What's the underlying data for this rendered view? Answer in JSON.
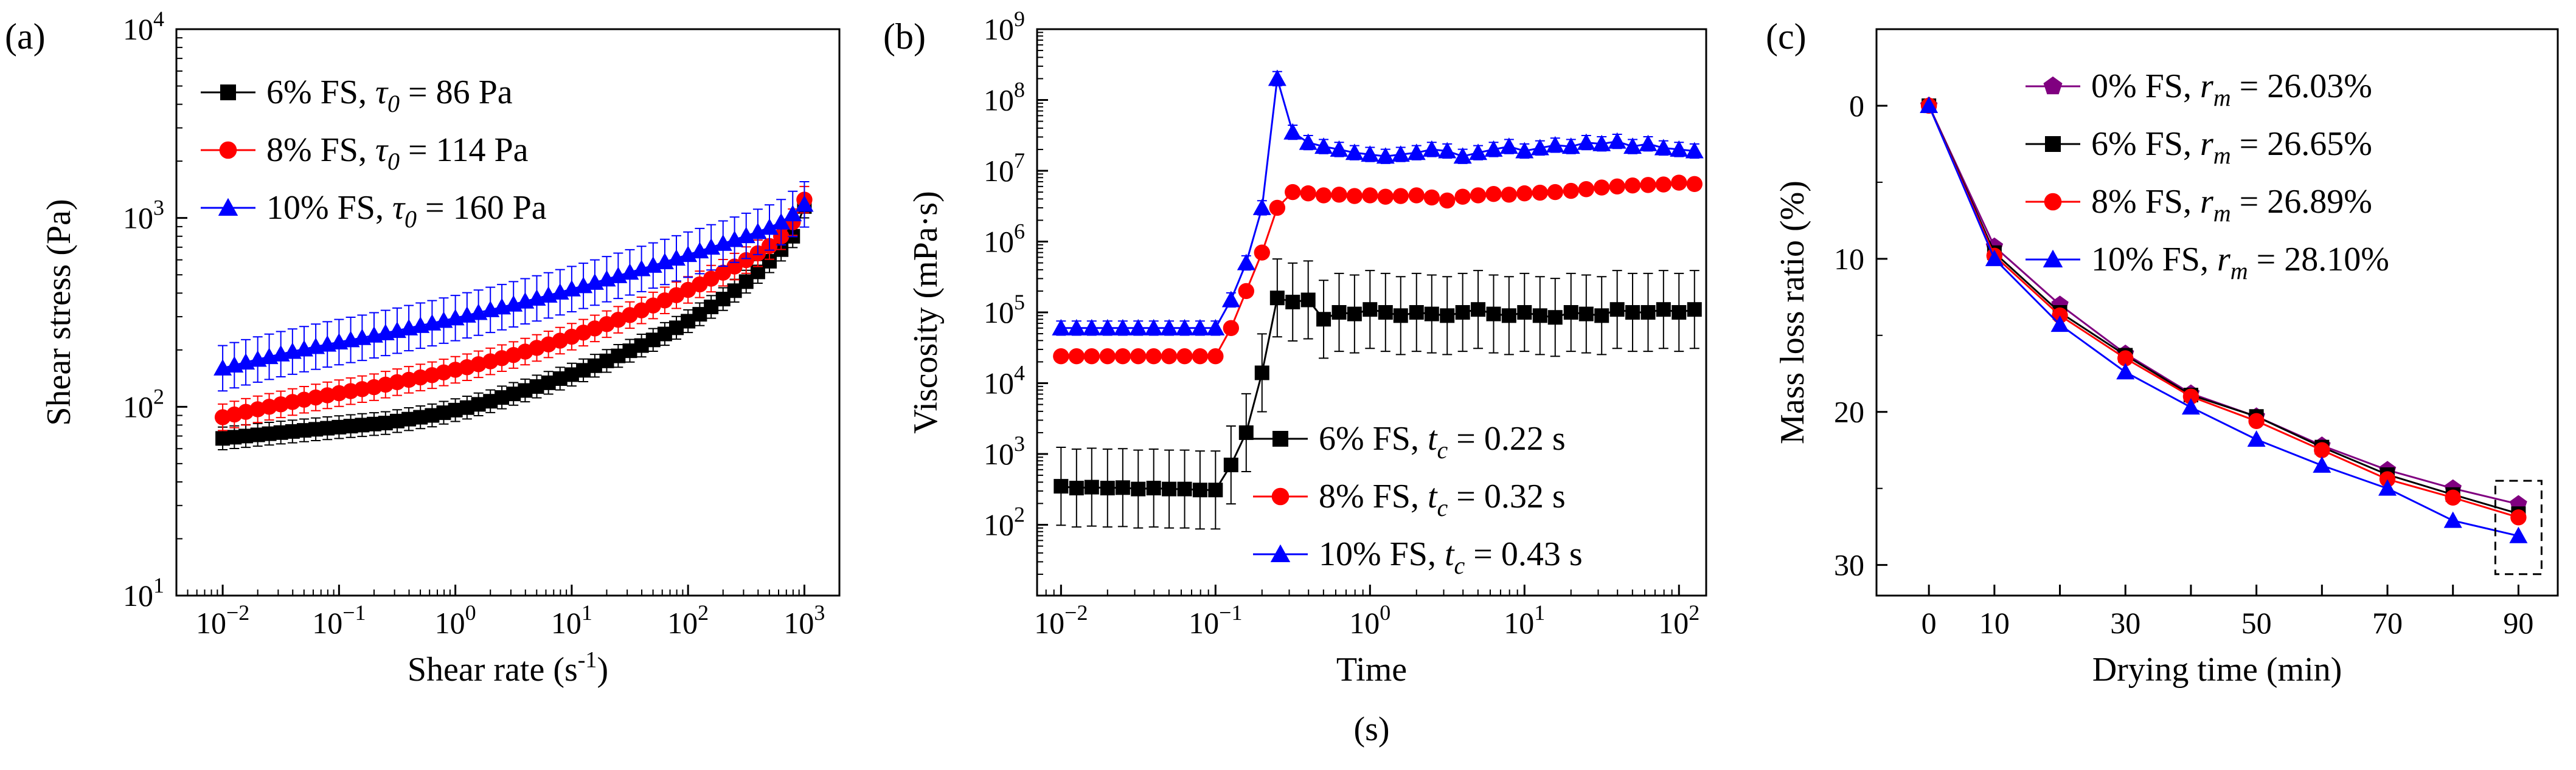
{
  "chart_data": [
    {
      "type": "scatter",
      "panel_label": "(a)",
      "xlabel": "Shear rate (s",
      "xlabel_sup": "-1",
      "xlabel_end": ")",
      "ylabel": "Shear stress (Pa)",
      "xscale": "log",
      "yscale": "log",
      "xlim": [
        0.004,
        2000
      ],
      "ylim": [
        10,
        10000
      ],
      "xticks": [
        {
          "v": 0.01,
          "base": "10",
          "exp": "−2"
        },
        {
          "v": 0.1,
          "base": "10",
          "exp": "−1"
        },
        {
          "v": 1,
          "base": "10",
          "exp": "0"
        },
        {
          "v": 10,
          "base": "10",
          "exp": "1"
        },
        {
          "v": 100,
          "base": "10",
          "exp": "2"
        },
        {
          "v": 1000,
          "base": "10",
          "exp": "3"
        }
      ],
      "yticks": [
        {
          "v": 10,
          "base": "10",
          "exp": "1"
        },
        {
          "v": 100,
          "base": "10",
          "exp": "2"
        },
        {
          "v": 1000,
          "base": "10",
          "exp": "3"
        },
        {
          "v": 10000,
          "base": "10",
          "exp": "4"
        }
      ],
      "legend_position": "top-left",
      "series": [
        {
          "legend": {
            "pre": "6% FS, ",
            "sym": "τ",
            "sub": "0",
            "post": " = 86 Pa"
          },
          "color": "#000000",
          "marker": "square",
          "x": [
            0.01,
            0.0126,
            0.0158,
            0.02,
            0.0251,
            0.0316,
            0.0398,
            0.0501,
            0.0631,
            0.0794,
            0.1,
            0.126,
            0.158,
            0.2,
            0.251,
            0.316,
            0.398,
            0.501,
            0.631,
            0.794,
            1,
            1.26,
            1.58,
            2,
            2.51,
            3.16,
            3.98,
            5.01,
            6.31,
            7.94,
            10,
            12.6,
            15.8,
            20,
            25.1,
            31.6,
            39.8,
            50.1,
            63.1,
            79.4,
            100,
            126,
            158,
            200,
            251,
            316,
            398,
            501,
            631,
            794,
            1000
          ],
          "y": [
            68,
            69,
            70,
            71,
            72,
            73,
            74,
            75,
            76,
            77,
            78,
            79,
            80,
            81,
            82,
            84,
            86,
            88,
            90,
            93,
            96,
            99,
            103,
            107,
            112,
            117,
            122,
            128,
            134,
            141,
            148,
            156,
            165,
            175,
            186,
            198,
            211,
            226,
            243,
            262,
            284,
            309,
            338,
            372,
            412,
            460,
            518,
            590,
            680,
            800,
            1150
          ],
          "err": 0.06
        },
        {
          "legend": {
            "pre": "8% FS, ",
            "sym": "τ",
            "sub": "0",
            "post": " = 114 Pa"
          },
          "color": "#ff0000",
          "marker": "circle",
          "x": [
            0.01,
            0.0126,
            0.0158,
            0.02,
            0.0251,
            0.0316,
            0.0398,
            0.0501,
            0.0631,
            0.0794,
            0.1,
            0.126,
            0.158,
            0.2,
            0.251,
            0.316,
            0.398,
            0.501,
            0.631,
            0.794,
            1,
            1.26,
            1.58,
            2,
            2.51,
            3.16,
            3.98,
            5.01,
            6.31,
            7.94,
            10,
            12.6,
            15.8,
            20,
            25.1,
            31.6,
            39.8,
            50.1,
            63.1,
            79.4,
            100,
            126,
            158,
            200,
            251,
            316,
            398,
            501,
            631,
            794,
            1000
          ],
          "y": [
            88,
            91,
            94,
            97,
            100,
            103,
            106,
            109,
            112,
            115,
            118,
            121,
            124,
            127,
            131,
            135,
            139,
            143,
            147,
            152,
            157,
            162,
            168,
            174,
            181,
            188,
            196,
            205,
            214,
            224,
            235,
            247,
            260,
            274,
            289,
            306,
            324,
            344,
            366,
            390,
            416,
            445,
            477,
            513,
            553,
            598,
            650,
            710,
            800,
            950,
            1250
          ],
          "err": 0.07
        },
        {
          "legend": {
            "pre": "10% FS, ",
            "sym": "τ",
            "sub": "0",
            "post": " = 160 Pa"
          },
          "color": "#0000ff",
          "marker": "triangle",
          "x": [
            0.01,
            0.0126,
            0.0158,
            0.02,
            0.0251,
            0.0316,
            0.0398,
            0.0501,
            0.0631,
            0.0794,
            0.1,
            0.126,
            0.158,
            0.2,
            0.251,
            0.316,
            0.398,
            0.501,
            0.631,
            0.794,
            1,
            1.26,
            1.58,
            2,
            2.51,
            3.16,
            3.98,
            5.01,
            6.31,
            7.94,
            10,
            12.6,
            15.8,
            20,
            25.1,
            31.6,
            39.8,
            50.1,
            63.1,
            79.4,
            100,
            126,
            158,
            200,
            251,
            316,
            398,
            501,
            631,
            794,
            1000
          ],
          "y": [
            160,
            166,
            172,
            178,
            184,
            190,
            196,
            202,
            208,
            214,
            220,
            226,
            232,
            239,
            246,
            253,
            261,
            269,
            277,
            286,
            295,
            305,
            315,
            326,
            337,
            349,
            362,
            375,
            389,
            404,
            420,
            437,
            455,
            474,
            494,
            515,
            537,
            560,
            585,
            611,
            639,
            668,
            699,
            732,
            767,
            804,
            844,
            890,
            950,
            1050,
            1180
          ],
          "err": 0.12
        }
      ]
    },
    {
      "type": "line",
      "panel_label": "(b)",
      "xlabel": "Time",
      "xlabel_unit": "(s)",
      "ylabel": "Viscosity (mPa·s)",
      "xscale": "log",
      "yscale": "log",
      "xlim": [
        0.007,
        150
      ],
      "ylim": [
        10,
        1000000000
      ],
      "xticks": [
        {
          "v": 0.01,
          "base": "10",
          "exp": "−2"
        },
        {
          "v": 0.1,
          "base": "10",
          "exp": "−1"
        },
        {
          "v": 1,
          "base": "10",
          "exp": "0"
        },
        {
          "v": 10,
          "base": "10",
          "exp": "1"
        },
        {
          "v": 100,
          "base": "10",
          "exp": "2"
        }
      ],
      "yticks": [
        {
          "v": 100,
          "base": "10",
          "exp": "2"
        },
        {
          "v": 1000,
          "base": "10",
          "exp": "3"
        },
        {
          "v": 10000,
          "base": "10",
          "exp": "4"
        },
        {
          "v": 100000,
          "base": "10",
          "exp": "5"
        },
        {
          "v": 1000000,
          "base": "10",
          "exp": "6"
        },
        {
          "v": 10000000,
          "base": "10",
          "exp": "7"
        },
        {
          "v": 100000000,
          "base": "10",
          "exp": "8"
        },
        {
          "v": 1000000000,
          "base": "10",
          "exp": "9"
        }
      ],
      "legend_position": "bottom-right",
      "series": [
        {
          "legend": {
            "pre": "6% FS, ",
            "sym": "t",
            "sub": "c",
            "post": " = 0.22 s"
          },
          "color": "#000000",
          "marker": "square",
          "x": [
            0.01,
            0.0126,
            0.0158,
            0.02,
            0.0251,
            0.0316,
            0.0398,
            0.0501,
            0.0631,
            0.0794,
            0.1,
            0.126,
            0.158,
            0.2,
            0.251,
            0.316,
            0.398,
            0.501,
            0.631,
            0.794,
            1,
            1.26,
            1.58,
            2,
            2.51,
            3.16,
            3.98,
            5.01,
            6.31,
            7.94,
            10,
            12.6,
            15.8,
            20,
            25.1,
            31.6,
            39.8,
            50.1,
            63.1,
            79.4,
            100,
            126
          ],
          "y": [
            350,
            330,
            340,
            330,
            335,
            320,
            330,
            320,
            320,
            310,
            310,
            700,
            2000,
            14000,
            160000,
            140000,
            150000,
            80000,
            100000,
            95000,
            110000,
            100000,
            90000,
            100000,
            95000,
            90000,
            100000,
            110000,
            95000,
            90000,
            100000,
            90000,
            85000,
            100000,
            95000,
            90000,
            110000,
            100000,
            100000,
            110000,
            100000,
            110000
          ],
          "err": 0.55
        },
        {
          "legend": {
            "pre": "8% FS, ",
            "sym": "t",
            "sub": "c",
            "post": " = 0.32 s"
          },
          "color": "#ff0000",
          "marker": "circle",
          "x": [
            0.01,
            0.0126,
            0.0158,
            0.02,
            0.0251,
            0.0316,
            0.0398,
            0.0501,
            0.0631,
            0.0794,
            0.1,
            0.126,
            0.158,
            0.2,
            0.251,
            0.316,
            0.398,
            0.501,
            0.631,
            0.794,
            1,
            1.26,
            1.58,
            2,
            2.51,
            3.16,
            3.98,
            5.01,
            6.31,
            7.94,
            10,
            12.6,
            15.8,
            20,
            25.1,
            31.6,
            39.8,
            50.1,
            63.1,
            79.4,
            100,
            126
          ],
          "y": [
            24000,
            24000,
            24000,
            24000,
            24000,
            24000,
            24000,
            24000,
            24000,
            24000,
            24000,
            60000,
            200000,
            700000,
            3000000,
            5000000,
            4800000,
            4500000,
            4600000,
            4400000,
            4500000,
            4300000,
            4400000,
            4500000,
            4200000,
            3800000,
            4300000,
            4500000,
            4700000,
            4600000,
            4800000,
            4900000,
            5000000,
            5200000,
            5500000,
            5800000,
            6000000,
            6200000,
            6300000,
            6400000,
            6800000,
            6500000
          ],
          "err": 0.08
        },
        {
          "legend": {
            "pre": "10% FS, ",
            "sym": "t",
            "sub": "c",
            "post": " = 0.43 s"
          },
          "color": "#0000ff",
          "marker": "triangle",
          "x": [
            0.01,
            0.0126,
            0.0158,
            0.02,
            0.0251,
            0.0316,
            0.0398,
            0.0501,
            0.0631,
            0.0794,
            0.1,
            0.126,
            0.158,
            0.2,
            0.251,
            0.316,
            0.398,
            0.501,
            0.631,
            0.794,
            1,
            1.26,
            1.58,
            2,
            2.51,
            3.16,
            3.98,
            5.01,
            6.31,
            7.94,
            10,
            12.6,
            15.8,
            20,
            25.1,
            31.6,
            39.8,
            50.1,
            63.1,
            79.4,
            100,
            126
          ],
          "y": [
            60000,
            60000,
            60000,
            60000,
            60000,
            60000,
            60000,
            60000,
            60000,
            60000,
            60000,
            150000,
            500000,
            3000000,
            200000000,
            35000000,
            25000000,
            22000000,
            20000000,
            18000000,
            17000000,
            16000000,
            17000000,
            18000000,
            20000000,
            19000000,
            16000000,
            18000000,
            20000000,
            22000000,
            19000000,
            21000000,
            23000000,
            22000000,
            25000000,
            24000000,
            26000000,
            22000000,
            24000000,
            21000000,
            20000000,
            19000000
          ],
          "err": 0.1
        }
      ]
    },
    {
      "type": "line",
      "panel_label": "(c)",
      "xlabel": "Drying time (min)",
      "ylabel": "Mass loss ratio (%)",
      "xscale": "linear",
      "yscale": "linear",
      "y_inverted": true,
      "xlim": [
        -8,
        96
      ],
      "ylim": [
        -5,
        32
      ],
      "xticks": [
        {
          "v": 0,
          "base": "0"
        },
        {
          "v": 10,
          "base": "10"
        },
        {
          "v": 30,
          "base": "30"
        },
        {
          "v": 50,
          "base": "50"
        },
        {
          "v": 70,
          "base": "70"
        },
        {
          "v": 90,
          "base": "90"
        }
      ],
      "yticks": [
        {
          "v": 0,
          "base": "0"
        },
        {
          "v": 10,
          "base": "10"
        },
        {
          "v": 20,
          "base": "20"
        },
        {
          "v": 30,
          "base": "30"
        }
      ],
      "legend_position": "top-right",
      "annotation": "dashed rectangle around final points at 90 min",
      "series": [
        {
          "legend": {
            "pre": "0% FS, ",
            "sym": "r",
            "sub": "m",
            "post": " = 26.03%"
          },
          "color": "#800080",
          "marker": "pentagon",
          "x": [
            0,
            10,
            20,
            30,
            40,
            50,
            60,
            70,
            80,
            90
          ],
          "y": [
            0,
            9.2,
            13.0,
            16.2,
            18.8,
            20.3,
            22.2,
            23.8,
            25.0,
            26.03
          ]
        },
        {
          "legend": {
            "pre": "6% FS, ",
            "sym": "r",
            "sub": "m",
            "post": " = 26.65%"
          },
          "color": "#000000",
          "marker": "square",
          "x": [
            0,
            10,
            20,
            30,
            40,
            50,
            60,
            70,
            80,
            90
          ],
          "y": [
            0,
            9.6,
            13.5,
            16.3,
            18.9,
            20.3,
            22.3,
            24.1,
            25.4,
            26.65
          ]
        },
        {
          "legend": {
            "pre": "8% FS, ",
            "sym": "r",
            "sub": "m",
            "post": " = 26.89%"
          },
          "color": "#ff0000",
          "marker": "circle",
          "x": [
            0,
            10,
            20,
            30,
            40,
            50,
            60,
            70,
            80,
            90
          ],
          "y": [
            0,
            9.8,
            13.7,
            16.5,
            19.0,
            20.6,
            22.5,
            24.4,
            25.6,
            26.89
          ]
        },
        {
          "legend": {
            "pre": "10% FS, ",
            "sym": "r",
            "sub": "m",
            "post": " = 28.10%"
          },
          "color": "#0000ff",
          "marker": "triangle",
          "x": [
            0,
            10,
            20,
            30,
            40,
            50,
            60,
            70,
            80,
            90
          ],
          "y": [
            0,
            10.0,
            14.3,
            17.4,
            19.7,
            21.8,
            23.5,
            25.0,
            27.1,
            28.1
          ]
        }
      ]
    }
  ]
}
